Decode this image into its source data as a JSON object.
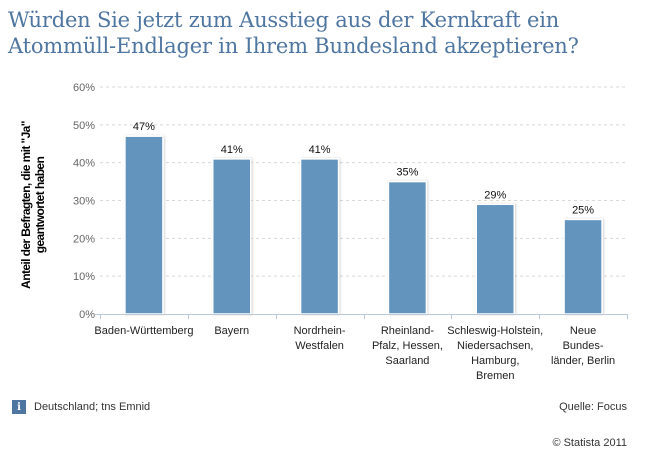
{
  "chart_data": {
    "type": "bar",
    "title": "Würden Sie jetzt zum Ausstieg aus der Kernkraft ein Atommüll-Endlager in Ihrem Bundesland akzeptieren?",
    "title_lines": [
      "Würden Sie jetzt zum Ausstieg aus der Kernkraft ein",
      "Atommüll-Endlager in Ihrem Bundesland akzeptieren?"
    ],
    "xlabel": "",
    "ylabel": "Anteil der Befragten, die mit \"Ja\" geantwortet haben",
    "ylabel_lines": [
      "Anteil der Befragten, die mit \"Ja\"",
      "geantwortet haben"
    ],
    "categories": [
      [
        "Baden-Württemberg"
      ],
      [
        "Bayern"
      ],
      [
        "Nordrhein-",
        "Westfalen"
      ],
      [
        "Rheinland-",
        "Pfalz, Hessen,",
        "Saarland"
      ],
      [
        "Schleswig-Holstein,",
        "Niedersachsen,",
        "Hamburg,",
        "Bremen"
      ],
      [
        "Neue",
        "Bundes-",
        "länder, Berlin"
      ]
    ],
    "category_names": [
      "Baden-Württemberg",
      "Bayern",
      "Nordrhein-Westfalen",
      "Rheinland-Pfalz, Hessen, Saarland",
      "Schleswig-Holstein, Niedersachsen, Hamburg, Bremen",
      "Neue Bundesländer, Berlin"
    ],
    "values": [
      47,
      41,
      41,
      35,
      29,
      25
    ],
    "value_labels": [
      "47%",
      "41%",
      "41%",
      "35%",
      "29%",
      "25%"
    ],
    "ylim": [
      0,
      60
    ],
    "yticks": [
      0,
      10,
      20,
      30,
      40,
      50,
      60
    ],
    "ytick_labels": [
      "0%",
      "10%",
      "20%",
      "30%",
      "40%",
      "50%",
      "60%"
    ],
    "grid": true,
    "legend": "none",
    "bar_color": "#6494bd"
  },
  "footer": {
    "info_icon_glyph": "i",
    "region_source": "Deutschland; tns Emnid",
    "source": "Quelle: Focus",
    "copyright": "© Statista 2011"
  }
}
